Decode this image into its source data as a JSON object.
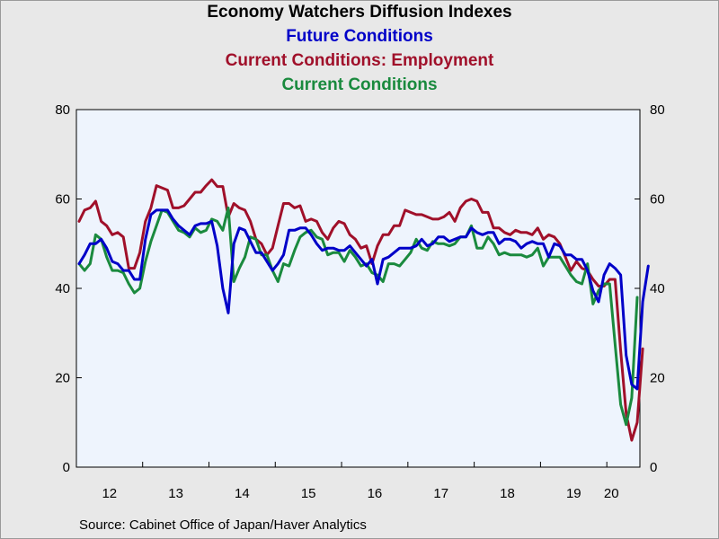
{
  "chart_data": {
    "type": "line",
    "title": "Economy Watchers Diffusion Indexes",
    "legend_titles": [
      "Future Conditions",
      "Current Conditions: Employment",
      "Current Conditions"
    ],
    "x_tick_labels": [
      "12",
      "13",
      "14",
      "15",
      "16",
      "17",
      "18",
      "19",
      "20"
    ],
    "y_ticks": [
      0,
      20,
      40,
      60,
      80
    ],
    "ylim": [
      0,
      80
    ],
    "x_start": "2012-01",
    "grid": false,
    "axes": "left-and-right",
    "source": "Source:  Cabinet Office of Japan/Haver Analytics",
    "series": [
      {
        "name": "Current Conditions: Employment",
        "color": "#a0102a",
        "values": [
          55,
          57.5,
          58,
          59.5,
          55,
          54,
          52,
          52.5,
          51.5,
          44.5,
          44.5,
          48,
          55,
          58,
          63,
          62.5,
          62,
          58,
          58,
          58.5,
          60,
          61.5,
          61.5,
          63,
          64.3,
          62.8,
          62.8,
          56,
          59,
          58,
          57.5,
          55,
          51,
          50,
          47.5,
          49,
          54,
          59,
          59,
          58,
          58.5,
          55,
          55.5,
          55,
          52.5,
          51,
          53.5,
          55,
          54.5,
          52,
          51,
          49,
          49.5,
          45.5,
          49.5,
          52,
          52,
          54,
          54,
          57.5,
          57,
          56.5,
          56.5,
          56,
          55.5,
          55.5,
          56,
          57,
          55,
          58,
          59.5,
          60,
          59.5,
          57,
          57,
          53.5,
          53.5,
          52.5,
          52,
          53,
          52.5,
          52.5,
          52,
          53.5,
          51,
          52,
          51.5,
          50,
          47,
          44,
          46,
          44.5,
          44,
          42,
          40.5,
          40.5,
          42,
          42,
          26,
          12,
          6,
          10,
          26.5
        ]
      },
      {
        "name": "Current Conditions",
        "color": "#1a8a3e",
        "values": [
          45.5,
          44,
          45.5,
          52,
          51,
          47,
          44,
          44,
          43.5,
          41,
          39,
          40,
          46,
          50.5,
          54,
          57.5,
          57,
          55,
          53,
          52.5,
          51.5,
          53.5,
          52.5,
          53,
          55.5,
          55,
          53,
          58,
          41.5,
          44.5,
          47,
          51.5,
          51,
          47.5,
          47.5,
          44,
          41.5,
          45.5,
          45,
          48.5,
          51.5,
          52.5,
          53,
          51.5,
          51,
          47.5,
          48,
          48,
          46,
          48.5,
          47,
          45,
          45.5,
          43.5,
          43,
          41.5,
          45.5,
          45.5,
          45,
          46.5,
          48,
          51,
          49,
          48.5,
          50.5,
          50,
          50,
          49.5,
          50,
          51.5,
          51.5,
          54,
          49,
          49,
          51.5,
          50,
          47.5,
          48,
          47.5,
          47.5,
          47.5,
          47,
          47.5,
          49,
          45,
          47,
          47,
          47,
          45,
          43,
          41.5,
          41,
          45.5,
          36.5,
          39.5,
          41,
          41,
          27.5,
          14,
          9.5,
          15.5,
          38
        ]
      },
      {
        "name": "Future Conditions",
        "color": "#0000c8",
        "values": [
          45.5,
          47.5,
          50,
          50,
          51,
          49,
          46,
          45.5,
          44,
          44,
          42,
          42,
          51,
          56.5,
          57.5,
          57.5,
          57.5,
          55.5,
          54,
          53,
          52,
          54,
          54.5,
          54.5,
          55,
          49.5,
          40,
          34.5,
          50,
          53.5,
          53,
          50.5,
          48,
          48,
          46,
          44,
          45.5,
          47.5,
          53,
          53,
          53.5,
          53.5,
          52,
          50,
          48.5,
          49,
          49,
          48.5,
          48.5,
          49.5,
          48,
          46.5,
          45,
          46.5,
          41,
          46.5,
          47,
          48,
          49,
          49,
          49,
          49.5,
          51,
          49.5,
          50,
          51.5,
          51.5,
          50.5,
          51,
          51.5,
          51.5,
          53.5,
          52.5,
          52,
          52.5,
          52.5,
          50,
          51,
          51,
          50.5,
          49,
          50,
          50.5,
          50,
          50,
          47,
          50,
          49.5,
          47.5,
          47.5,
          46.5,
          46.5,
          44,
          39.5,
          37,
          43,
          45.5,
          44.5,
          43,
          25,
          18.5,
          17.5,
          37,
          45
        ]
      }
    ]
  }
}
